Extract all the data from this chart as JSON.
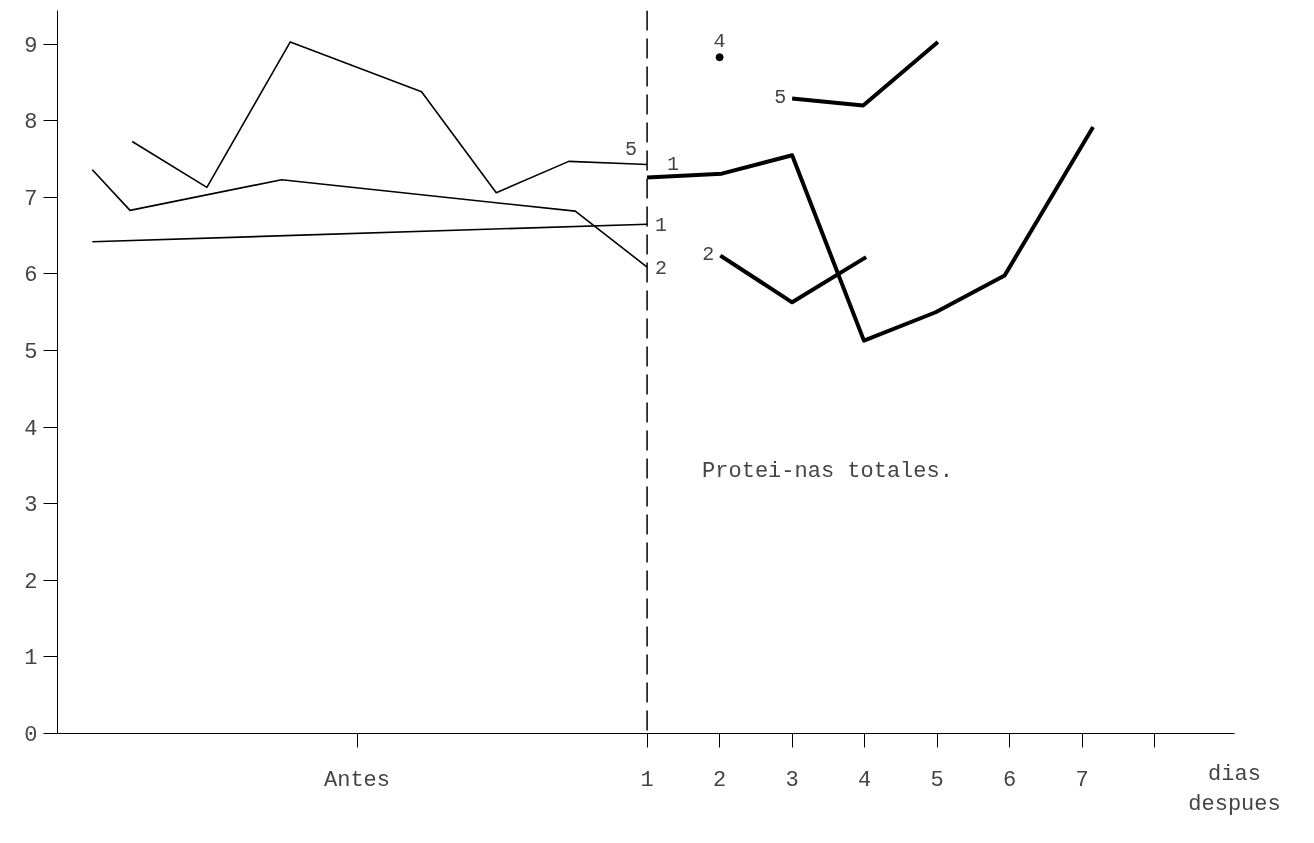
{
  "chart_data": {
    "type": "line",
    "title": "Protei-nas totales.",
    "xlabel": "dias despues",
    "xlim": [
      -7.13,
      9.1
    ],
    "ylim": [
      0,
      9.44
    ],
    "xticks": [
      {
        "value": -3,
        "label": "Antes"
      },
      1,
      2,
      3,
      4,
      5,
      6,
      7,
      {
        "value": 8,
        "label": null
      }
    ],
    "yticks": [
      0,
      1,
      2,
      3,
      4,
      5,
      6,
      7,
      8,
      9
    ],
    "grid": false,
    "marker": "none",
    "line_style": "solid",
    "ref_lines": [
      {
        "axis": "x",
        "value": 1,
        "label": null,
        "color": "#000000",
        "line_style": "dashed"
      }
    ],
    "series": [
      {
        "name": "5",
        "color": "#000000",
        "x": [
          -6.1,
          -5.07,
          -3.92,
          -2.11,
          -1.08,
          -0.08,
          0.75,
          1.0
        ],
        "values": [
          7.73,
          7.13,
          9.03,
          8.38,
          7.06,
          7.47,
          7.44,
          7.43
        ]
      },
      {
        "name": "2",
        "color": "#000000",
        "x": [
          -6.65,
          -6.13,
          -4.04,
          0.01,
          1.0
        ],
        "values": [
          7.36,
          6.83,
          7.23,
          6.82,
          6.09
        ]
      },
      {
        "name": "1",
        "color": "#000000",
        "x": [
          -6.65,
          1.0
        ],
        "values": [
          6.42,
          6.65
        ]
      },
      {
        "name": "1",
        "color": "#000000",
        "x": [
          1.0,
          2.03,
          3.0,
          3.99,
          4.98,
          5.93,
          7.15
        ],
        "values": [
          7.26,
          7.31,
          7.55,
          5.13,
          5.5,
          5.98,
          7.92
        ]
      },
      {
        "name": "2",
        "color": "#000000",
        "x": [
          2.01,
          3.0,
          4.02
        ],
        "values": [
          6.24,
          5.63,
          6.22
        ]
      },
      {
        "name": "5",
        "color": "#000000",
        "x": [
          3.0,
          3.98,
          5.01
        ],
        "values": [
          8.29,
          8.2,
          9.03
        ]
      },
      {
        "name": "4",
        "type": "scatter",
        "color": "#000000",
        "x": [
          2.0
        ],
        "values": [
          8.83
        ]
      }
    ]
  }
}
